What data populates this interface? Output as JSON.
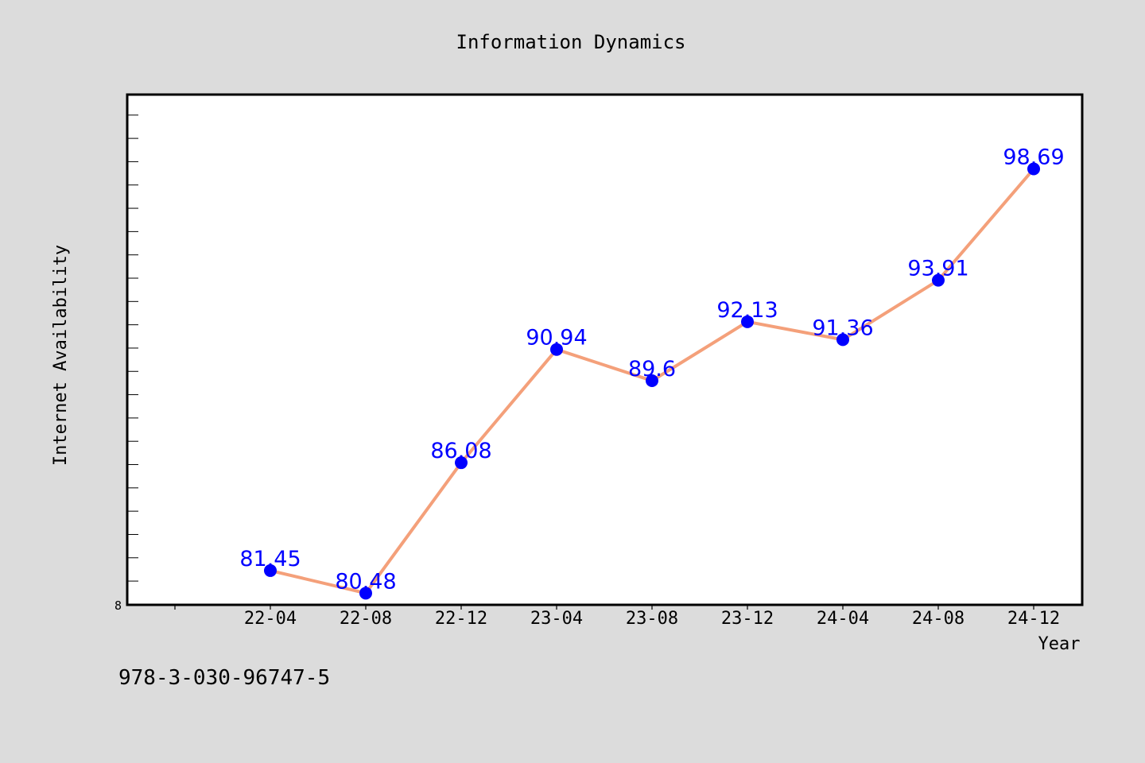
{
  "chart_data": {
    "type": "line",
    "title": "Information Dynamics",
    "xlabel": "Year",
    "ylabel": "Internet Availability",
    "categories": [
      "22-04",
      "22-08",
      "22-12",
      "23-04",
      "23-08",
      "23-12",
      "24-04",
      "24-08",
      "24-12"
    ],
    "series": [
      {
        "values": [
          81.45,
          80.48,
          86.08,
          90.94,
          89.6,
          92.13,
          91.36,
          93.91,
          98.69
        ]
      }
    ],
    "data_labels": [
      "81.45",
      "80.48",
      "86.08",
      "90.94",
      "89.6",
      "92.13",
      "91.36",
      "93.91",
      "98.69"
    ],
    "y_tick_label": "8",
    "ylim": [
      79.98,
      101.88
    ],
    "y_minor_tick_step": 1,
    "grid": false,
    "legend": "none",
    "colors": {
      "line": "#f4a07a",
      "marker": "#0000ff",
      "label": "#0000ff",
      "background": "#dcdcdc",
      "plot_background": "#ffffff"
    }
  },
  "footer": {
    "code": "978-3-030-96747-5"
  }
}
